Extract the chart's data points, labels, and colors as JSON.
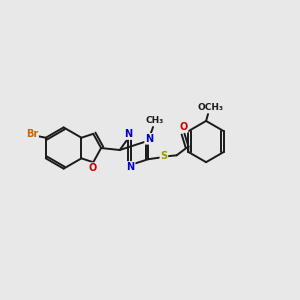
{
  "background_color": "#e8e8e8",
  "bond_color": "#1a1a1a",
  "atom_colors": {
    "Br": "#cc6600",
    "O": "#cc0000",
    "N": "#0000cc",
    "S": "#999900",
    "C": "#1a1a1a"
  },
  "figsize": [
    3.0,
    3.0
  ],
  "dpi": 100
}
